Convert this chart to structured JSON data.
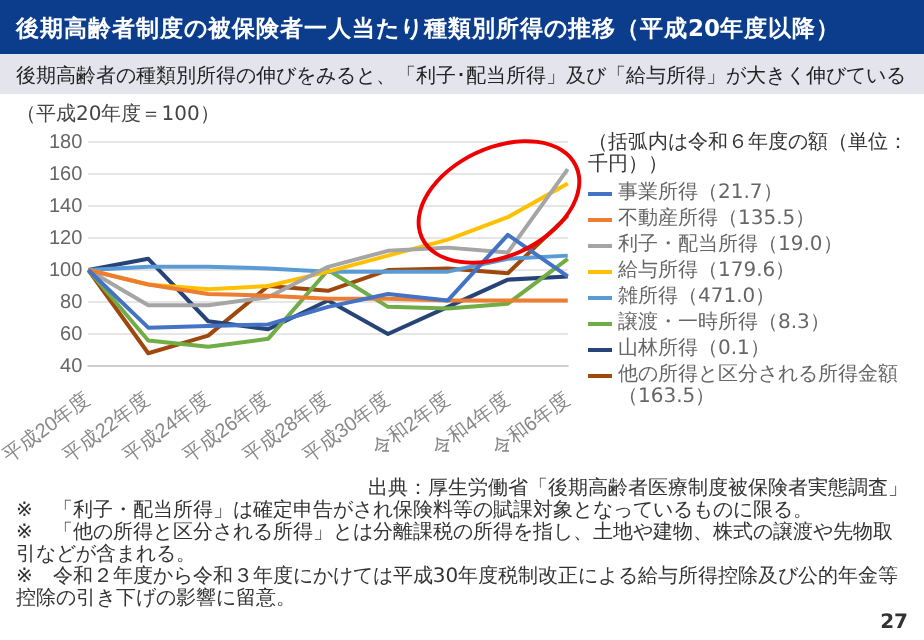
{
  "chart_data": {
    "type": "line",
    "title": "後期高齢者制度の被保険者一人当たり種類別所得の推移（平成20年度以降）",
    "subtitle": "後期高齢者の種類別所得の伸びをみると、「利子･配当所得」及び「給与所得」が大きく伸びている",
    "ylabel": "（平成20年度＝100）",
    "legend_title": "（括弧内は令和６年度の額（単位：千円））",
    "categories": [
      "平成20年度",
      "平成22年度",
      "平成24年度",
      "平成26年度",
      "平成28年度",
      "平成30年度",
      "令和2年度",
      "令和4年度",
      "令和6年度"
    ],
    "series": [
      {
        "name": "事業所得（21.7）",
        "color": "#4472c4",
        "values": [
          100,
          64,
          65,
          66,
          77,
          85,
          81,
          122,
          96
        ]
      },
      {
        "name": "不動産所得（135.5）",
        "color": "#ed7d31",
        "values": [
          100,
          91,
          85,
          84,
          82,
          82,
          81,
          81,
          81
        ]
      },
      {
        "name": "利子・配当所得（19.0）",
        "color": "#a5a5a5",
        "values": [
          100,
          78,
          78,
          83,
          102,
          112,
          114,
          111,
          163
        ]
      },
      {
        "name": "給与所得（179.6）",
        "color": "#ffc000",
        "values": [
          100,
          91,
          88,
          90,
          99,
          109,
          119,
          133,
          154
        ]
      },
      {
        "name": "雑所得（471.0）",
        "color": "#5b9bd5",
        "values": [
          100,
          102,
          102,
          101,
          99,
          99,
          99,
          107,
          109
        ]
      },
      {
        "name": "譲渡・一時所得（8.3）",
        "color": "#70ad47",
        "values": [
          100,
          56,
          52,
          57,
          100,
          77,
          76,
          79,
          107
        ]
      },
      {
        "name": "山林所得（0.1）",
        "color": "#264478",
        "values": [
          100,
          107,
          68,
          63,
          81,
          60,
          77,
          94,
          96
        ]
      },
      {
        "name": "他の所得と区分される所得金額（163.5）",
        "color": "#9e480e",
        "values": [
          100,
          48,
          59,
          90,
          87,
          100,
          101,
          98,
          134
        ]
      }
    ],
    "ylim": [
      40,
      180
    ],
    "yticks": [
      40,
      60,
      80,
      100,
      120,
      140,
      160,
      180
    ],
    "grid": "y",
    "legend": "right",
    "marker": "none",
    "line_style": "solid",
    "annotations": [
      "出典：厚生労働省「後期高齢者医療制度被保険者実態調査」",
      "※　「利子・配当所得」は確定申告がされ保険料等の賦課対象となっているものに限る。",
      "※　「他の所得と区分される所得」とは分離課税の所得を指し、土地や建物、株式の譲渡や先物取引などが含まれる。",
      "※　令和２年度から令和３年度にかけては平成30年度税制改正による給与所得控除及び公的年金等控除の引き下げの影響に留意。",
      "27"
    ]
  }
}
